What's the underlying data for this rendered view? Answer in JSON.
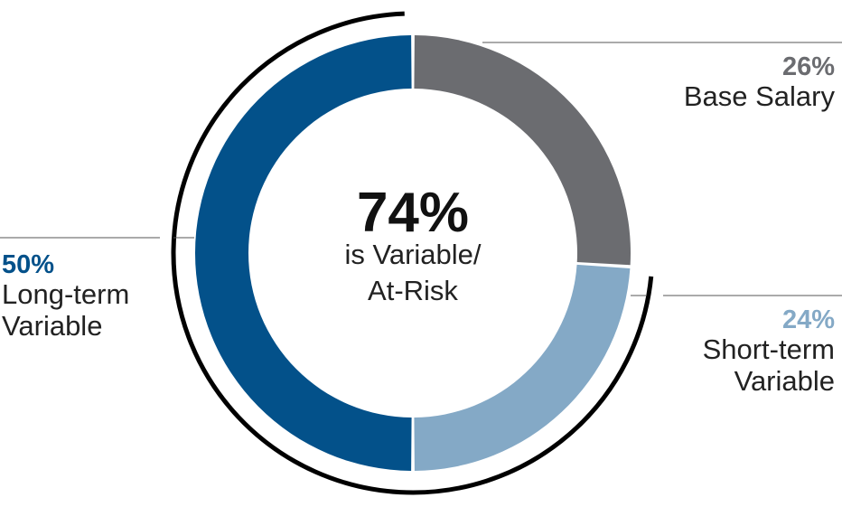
{
  "chart_data": {
    "type": "pie",
    "variant": "donut",
    "categories": [
      "Base Salary",
      "Short-term Variable",
      "Long-term Variable"
    ],
    "values": [
      26,
      24,
      50
    ],
    "colors": [
      "#6b6c70",
      "#84a9c6",
      "#03518a"
    ],
    "value_labels": [
      "26%",
      "24%",
      "50%"
    ],
    "center": {
      "value": "74%",
      "line1": "is Variable/",
      "line2": "At-Risk"
    },
    "callouts": {
      "base": {
        "pct": "26%",
        "line1": "Base Salary"
      },
      "short": {
        "pct": "24%",
        "line1": "Short-term",
        "line2": "Variable"
      },
      "long": {
        "pct": "50%",
        "line1": "Long-term",
        "line2": "Variable"
      }
    }
  }
}
